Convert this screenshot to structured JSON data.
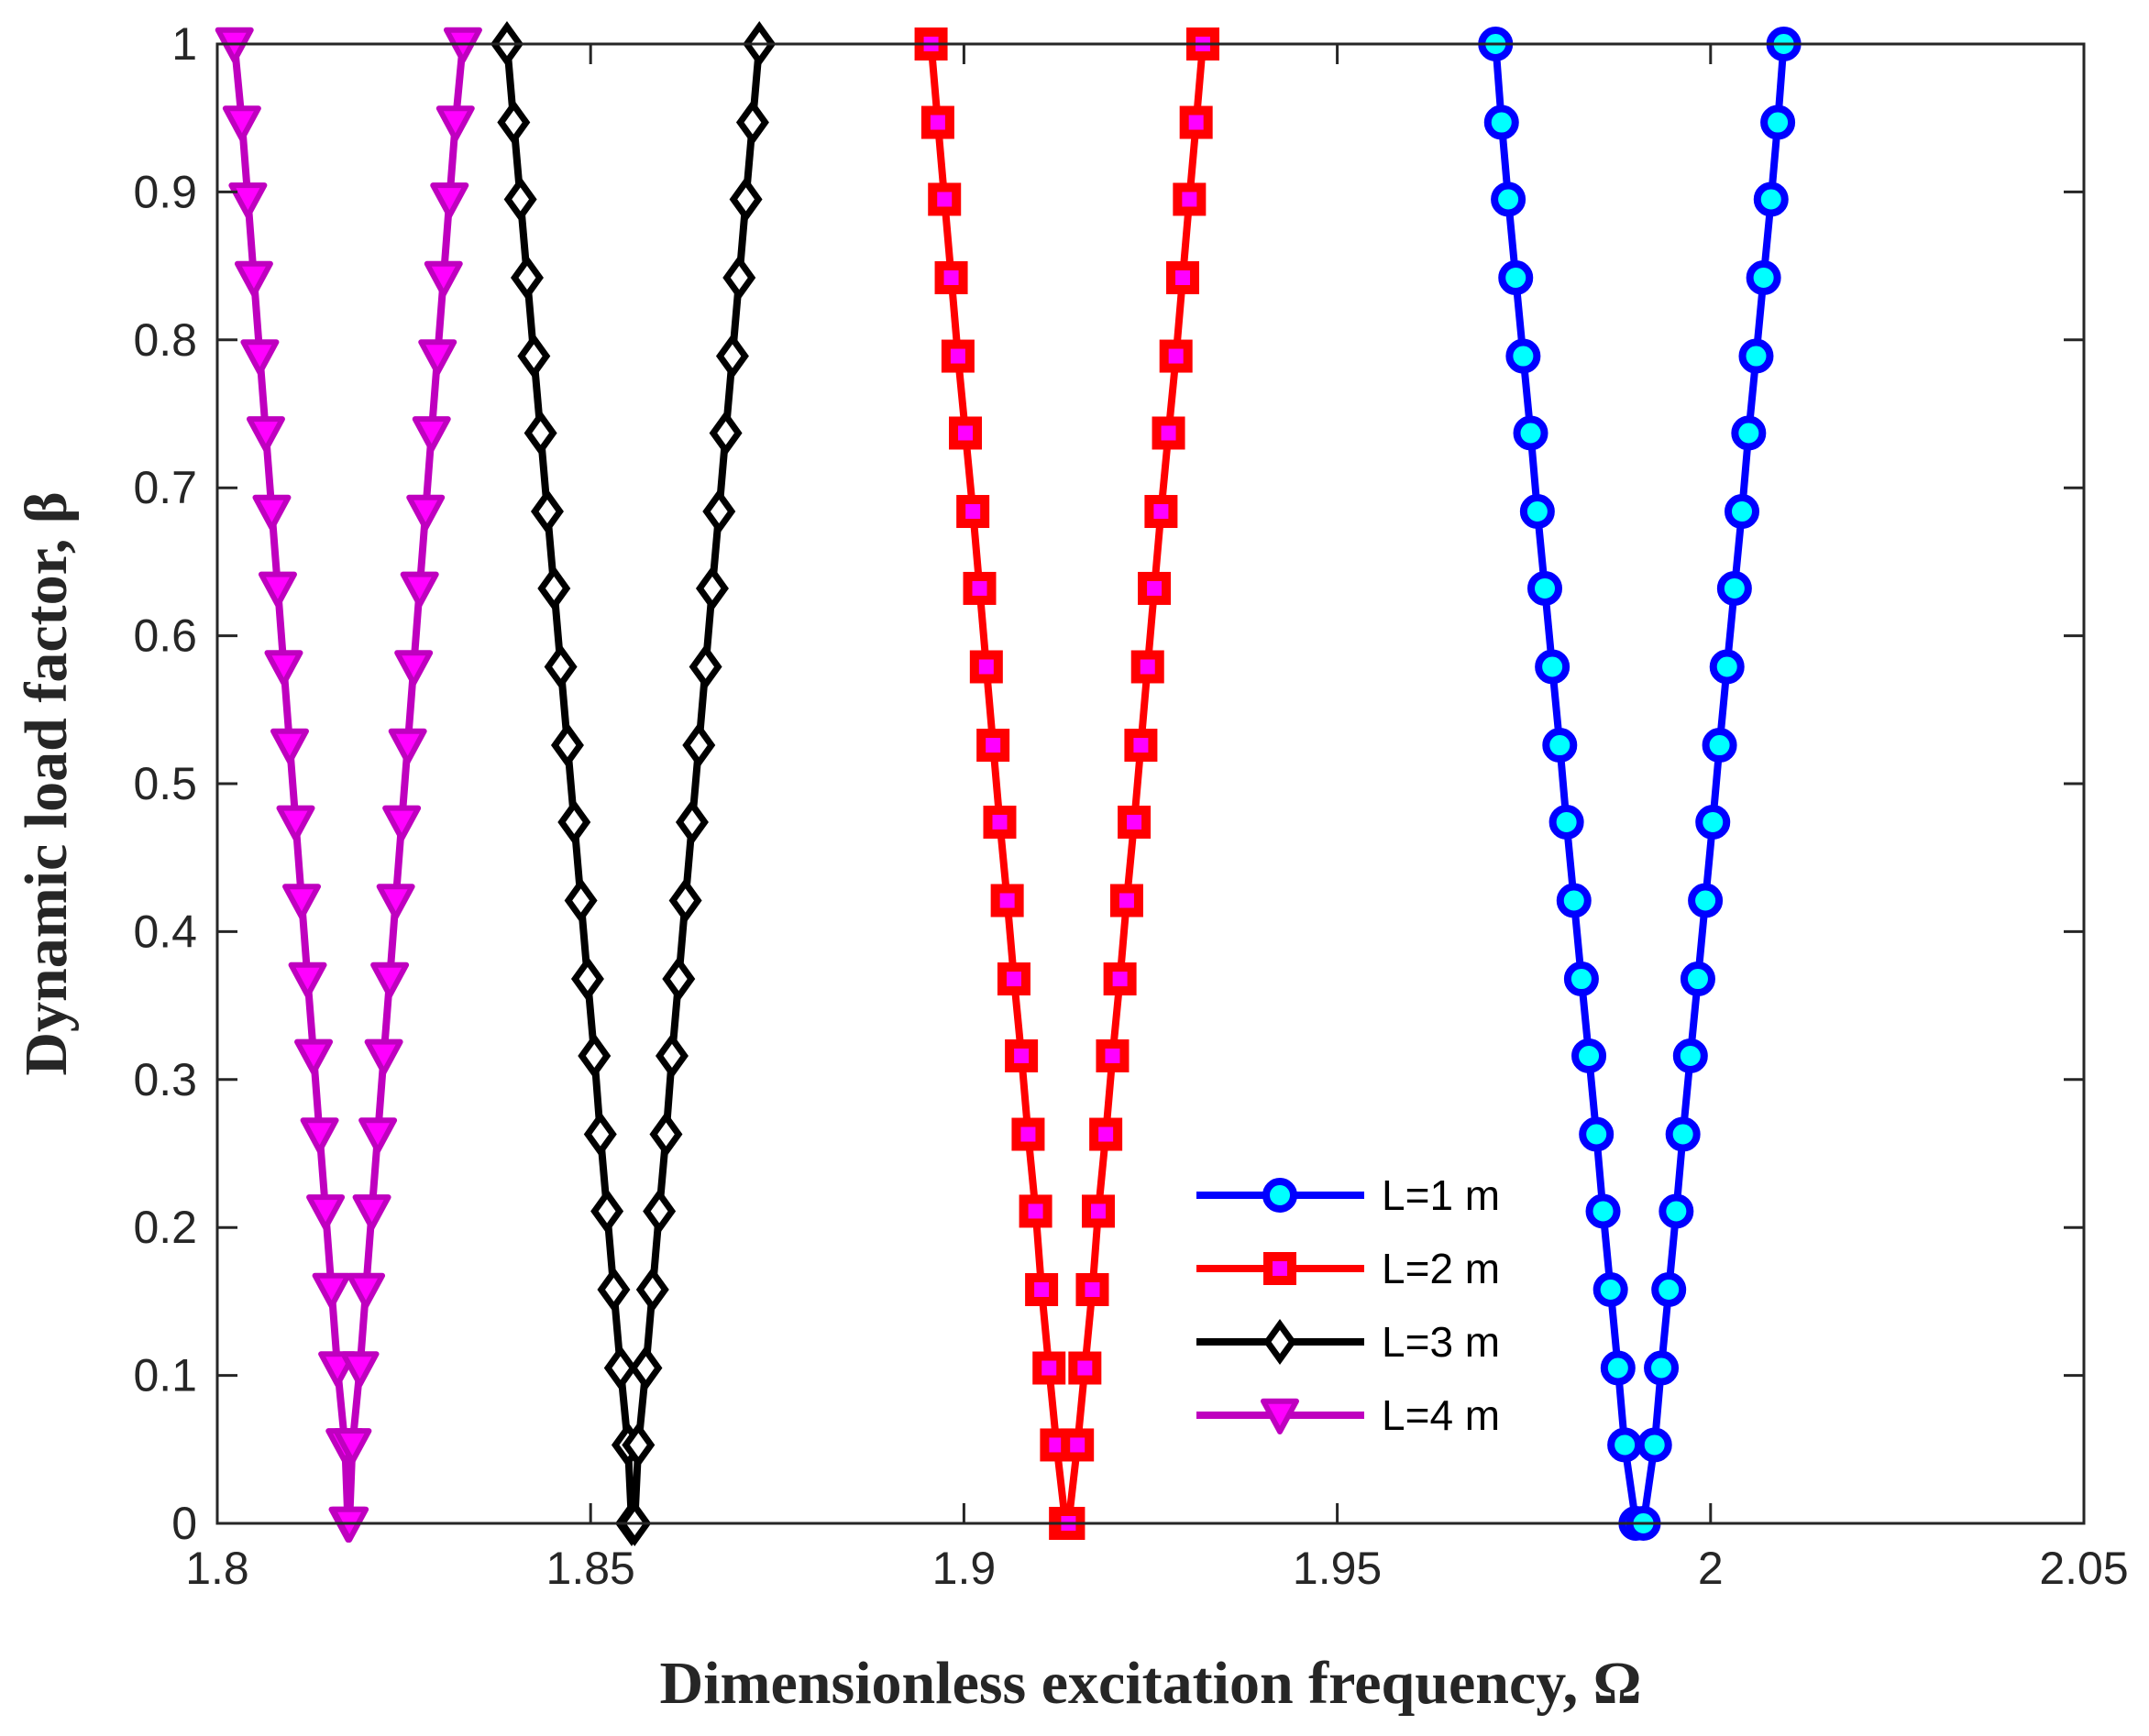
{
  "chart_data": {
    "type": "line",
    "title": "",
    "xlabel": "Dimensionless excitation frequency, Ω",
    "ylabel": "Dynamic load factor, β",
    "xlim": [
      1.8,
      2.05
    ],
    "ylim": [
      0,
      1
    ],
    "xticks": [
      1.8,
      1.85,
      1.9,
      1.95,
      2.0,
      2.05
    ],
    "xtick_labels": [
      "1.8",
      "1.85",
      "1.9",
      "1.95",
      "2",
      "2.05"
    ],
    "yticks": [
      0,
      0.1,
      0.2,
      0.3,
      0.4,
      0.5,
      0.6,
      0.7,
      0.8,
      0.9,
      1
    ],
    "ytick_labels": [
      "0",
      "0.1",
      "0.2",
      "0.3",
      "0.4",
      "0.5",
      "0.6",
      "0.7",
      "0.8",
      "0.9",
      "1"
    ],
    "grid": false,
    "legend_position": "bottom-right",
    "beta": [
      0,
      0.053,
      0.105,
      0.158,
      0.211,
      0.263,
      0.316,
      0.368,
      0.421,
      0.474,
      0.526,
      0.579,
      0.632,
      0.684,
      0.737,
      0.789,
      0.842,
      0.895,
      0.947,
      1.0
    ],
    "series": [
      {
        "name": "L=1 m",
        "color": "#0000ff",
        "marker": "circle",
        "marker_face": "#00ffff",
        "center": 1.9905,
        "half_width": [
          0.0005,
          0.002,
          0.0029,
          0.0039,
          0.0049,
          0.0058,
          0.0068,
          0.0078,
          0.0088,
          0.0098,
          0.0107,
          0.0117,
          0.0127,
          0.0137,
          0.0146,
          0.0156,
          0.0166,
          0.0176,
          0.0185,
          0.0193
        ]
      },
      {
        "name": "L=2 m",
        "color": "#ff0000",
        "marker": "square",
        "marker_face": "#ff00ff",
        "center": 1.9138,
        "half_width": [
          0.0002,
          0.0014,
          0.0024,
          0.0034,
          0.0042,
          0.0052,
          0.0061,
          0.0071,
          0.008,
          0.009,
          0.0099,
          0.0108,
          0.0117,
          0.0126,
          0.0136,
          0.0146,
          0.0155,
          0.0164,
          0.0173,
          0.0182
        ]
      },
      {
        "name": "L=3 m",
        "color": "#000000",
        "marker": "diamond",
        "marker_face": "#ffffff",
        "center": 1.8557,
        "half_width": [
          0.0002,
          0.0007,
          0.0017,
          0.0026,
          0.0035,
          0.0044,
          0.0052,
          0.0061,
          0.007,
          0.0079,
          0.0088,
          0.0097,
          0.0106,
          0.0115,
          0.0124,
          0.0133,
          0.0142,
          0.0151,
          0.016,
          0.0169
        ]
      },
      {
        "name": "L=4 m",
        "color": "#bf00bf",
        "marker": "triangle-down",
        "marker_face": "#ff00ff",
        "center": 1.8176,
        "half_width": [
          0.0001,
          0.0005,
          0.0015,
          0.0023,
          0.0031,
          0.0039,
          0.0047,
          0.0055,
          0.0063,
          0.0071,
          0.0079,
          0.0087,
          0.0095,
          0.0103,
          0.0111,
          0.0119,
          0.0127,
          0.0135,
          0.0143,
          0.0153
        ]
      }
    ]
  }
}
